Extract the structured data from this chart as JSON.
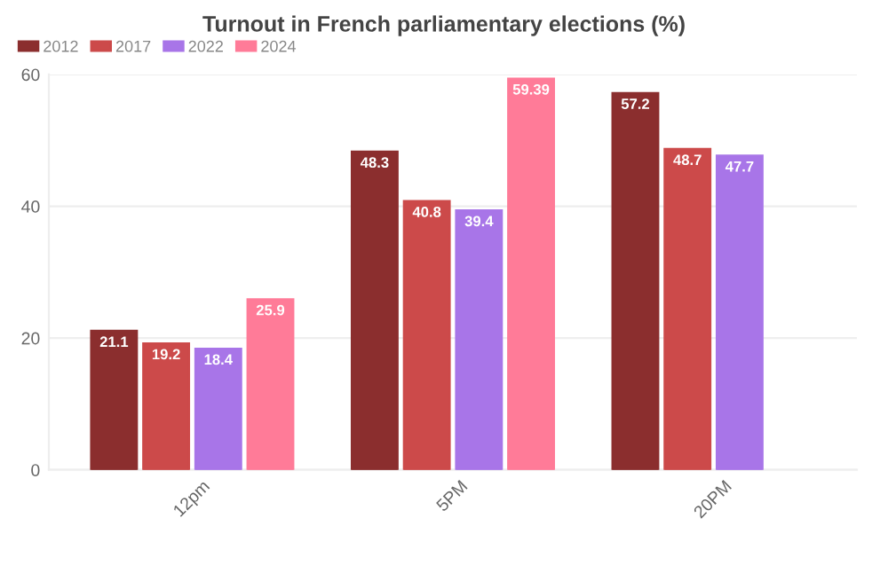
{
  "chart_data": {
    "type": "bar",
    "title": "Turnout in French parliamentary elections (%)",
    "categories": [
      "12pm",
      "5PM",
      "20PM"
    ],
    "series": [
      {
        "name": "2012",
        "color": "#8b2e2e",
        "values": [
          21.1,
          48.3,
          57.2
        ]
      },
      {
        "name": "2017",
        "color": "#cc4a4a",
        "values": [
          19.2,
          40.8,
          48.7
        ]
      },
      {
        "name": "2022",
        "color": "#a875e8",
        "values": [
          18.4,
          39.4,
          47.7
        ]
      },
      {
        "name": "2024",
        "color": "#ff7b98",
        "values": [
          25.9,
          59.39,
          null
        ]
      }
    ],
    "ylim": [
      0,
      60
    ],
    "yticks": [
      0,
      20,
      40,
      60
    ],
    "grid": "y",
    "legend": "top left",
    "data_labels": true
  }
}
